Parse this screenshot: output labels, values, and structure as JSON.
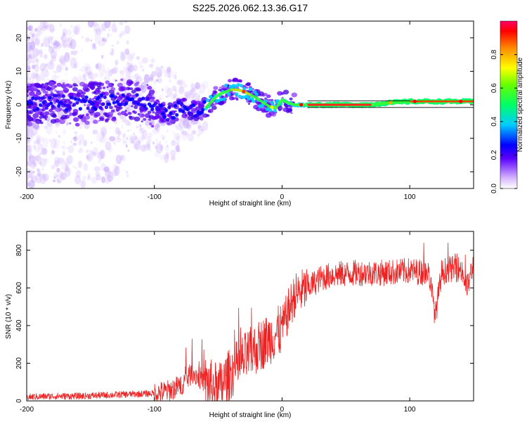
{
  "chart_data": [
    {
      "type": "heatmap",
      "title": "S225.2026.062.13.36.G17",
      "xlabel": "Height of straight line (km)",
      "ylabel": "Frequency (Hz)",
      "xlim": [
        -200,
        150
      ],
      "ylim": [
        -25,
        25
      ],
      "x_ticks": [
        -200,
        -100,
        0,
        100
      ],
      "x_tick_labels": [
        "-200",
        "-100",
        "0",
        "100"
      ],
      "y_ticks": [
        -20,
        -10,
        0,
        10,
        20
      ],
      "y_tick_labels": [
        "-20",
        "-10",
        "0",
        "10",
        "20"
      ],
      "ridge": {
        "x": [
          -200,
          -180,
          -160,
          -140,
          -120,
          -110,
          -100,
          -90,
          -80,
          -70,
          -60,
          -50,
          -40,
          -35,
          -30,
          -20,
          -10,
          -5,
          0,
          5,
          10,
          20,
          40,
          60,
          70,
          80,
          100,
          120,
          150
        ],
        "y": [
          0,
          1,
          0,
          1,
          2,
          1,
          -1,
          -3,
          -1,
          -2,
          -1,
          3,
          4.5,
          4.5,
          4,
          2,
          -0.5,
          -1,
          1.5,
          0.5,
          0,
          0,
          0,
          0,
          0,
          0.5,
          1,
          1,
          1
        ]
      },
      "colorbar": {
        "label": "Normalized spectral amplitude",
        "ticks": [
          0.0,
          0.2,
          0.4,
          0.6,
          0.8
        ],
        "tick_labels": [
          "0.0",
          "0.2",
          "0.4",
          "0.6",
          "0.8"
        ],
        "range": [
          0,
          1
        ]
      }
    },
    {
      "type": "line",
      "xlabel": "Height of straight line (km)",
      "ylabel": "SNR (10 * v/v)",
      "xlim": [
        -200,
        150
      ],
      "ylim": [
        0,
        900
      ],
      "x_ticks": [
        -200,
        -100,
        0,
        100
      ],
      "x_tick_labels": [
        "-200",
        "-100",
        "0",
        "100"
      ],
      "y_ticks": [
        0,
        200,
        400,
        600,
        800
      ],
      "y_tick_labels": [
        "0",
        "200",
        "400",
        "600",
        "800"
      ],
      "color": "#ee2222",
      "series": [
        {
          "name": "SNR",
          "x": [
            -200,
            -180,
            -160,
            -140,
            -120,
            -100,
            -90,
            -80,
            -70,
            -60,
            -50,
            -40,
            -30,
            -20,
            -10,
            0,
            5,
            10,
            20,
            30,
            40,
            60,
            80,
            100,
            115,
            120,
            125,
            130,
            140,
            145,
            150
          ],
          "y": [
            20,
            25,
            25,
            30,
            35,
            40,
            50,
            80,
            150,
            100,
            60,
            150,
            220,
            280,
            330,
            380,
            480,
            560,
            600,
            650,
            670,
            680,
            680,
            690,
            680,
            450,
            680,
            700,
            700,
            600,
            730
          ]
        }
      ]
    }
  ]
}
